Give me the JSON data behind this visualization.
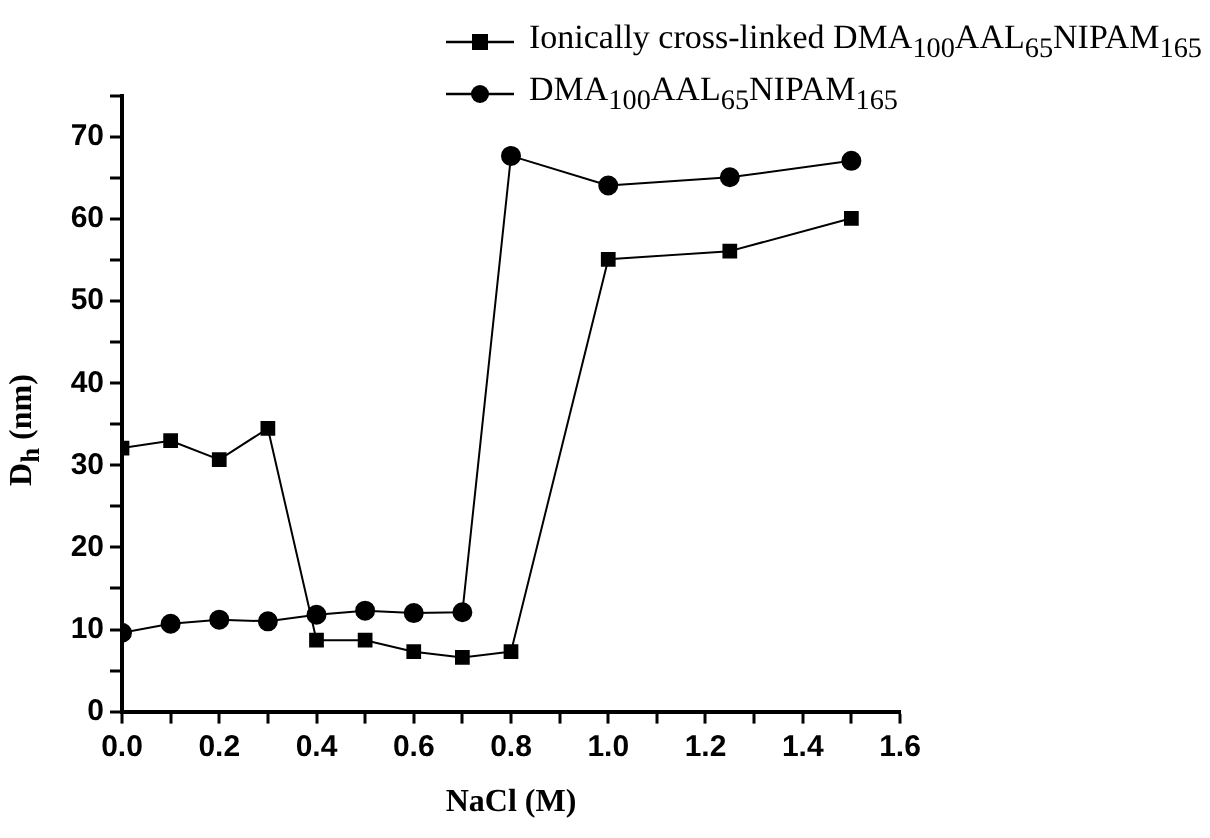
{
  "chart_data": {
    "type": "line",
    "xlabel": "NaCl (M)",
    "ylabel": "D$_{h}$ (nm)",
    "x": [
      0,
      0.1,
      0.2,
      0.3,
      0.4,
      0.5,
      0.6,
      0.7,
      0.8,
      1.0,
      1.25,
      1.5
    ],
    "series": [
      {
        "name": "Ionically cross-linked DMA$_{100}$AAL$_{65}$NIPAM$_{165}$",
        "color": "#000000",
        "marker": "square",
        "values": [
          32.1,
          33,
          30.7,
          34.5,
          8.7,
          8.7,
          7.3,
          6.6,
          7.3,
          55.1,
          56.1,
          60.1
        ]
      },
      {
        "name": "DMA$_{100}$AAL$_{65}$NIPAM$_{165}$",
        "color": "#000000",
        "marker": "circle",
        "values": [
          9.6,
          10.7,
          11.2,
          11.0,
          11.8,
          12.3,
          12.0,
          12.1,
          67.7,
          64.1,
          65.1,
          67.1
        ]
      }
    ],
    "xlim": [
      0,
      1.6
    ],
    "xticks": [
      {
        "value": 0,
        "label": "0.0"
      },
      {
        "value": 0.1,
        "label": null
      },
      0.2,
      {
        "value": 0.3,
        "label": null
      },
      0.4,
      {
        "value": 0.5,
        "label": null
      },
      0.6,
      {
        "value": 0.7,
        "label": null
      },
      0.8,
      {
        "value": 0.9,
        "label": null
      },
      {
        "value": 1,
        "label": "1.0"
      },
      {
        "value": 1.1,
        "label": null
      },
      1.2,
      {
        "value": 1.3,
        "label": null
      },
      1.4,
      {
        "value": 1.5,
        "label": null
      },
      1.6
    ],
    "ylim": [
      0,
      75
    ],
    "yticks": [
      0,
      {
        "value": 5,
        "label": null
      },
      10,
      {
        "value": 15,
        "label": null
      },
      20,
      {
        "value": 25,
        "label": null
      },
      30,
      {
        "value": 35,
        "label": null
      },
      40,
      {
        "value": 45,
        "label": null
      },
      50,
      {
        "value": 55,
        "label": null
      },
      60,
      {
        "value": 65,
        "label": null
      },
      70,
      {
        "value": 75,
        "label": null
      }
    ],
    "grid": false,
    "legend": "top right",
    "line_style": "solid"
  }
}
